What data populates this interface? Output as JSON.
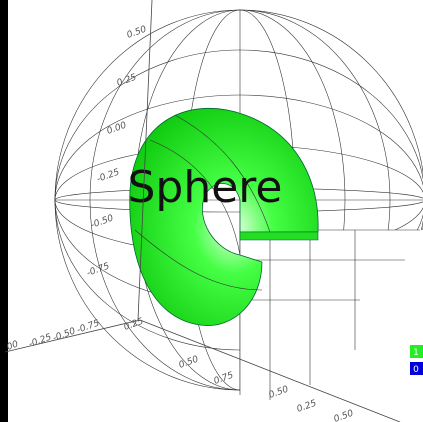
{
  "title": "Sphere",
  "axis_labels": {
    "vertical": [
      "0.50",
      "0.25",
      "0.00",
      "-0.25",
      "-0.50",
      "-0.75"
    ],
    "left": [
      "00",
      "-0.25",
      "-0.50",
      "-0.75"
    ],
    "right": [
      "0.25",
      "0.50",
      "0.75",
      "0.50",
      "0.25",
      "0.50"
    ]
  },
  "legend": [
    "1",
    "0"
  ]
}
